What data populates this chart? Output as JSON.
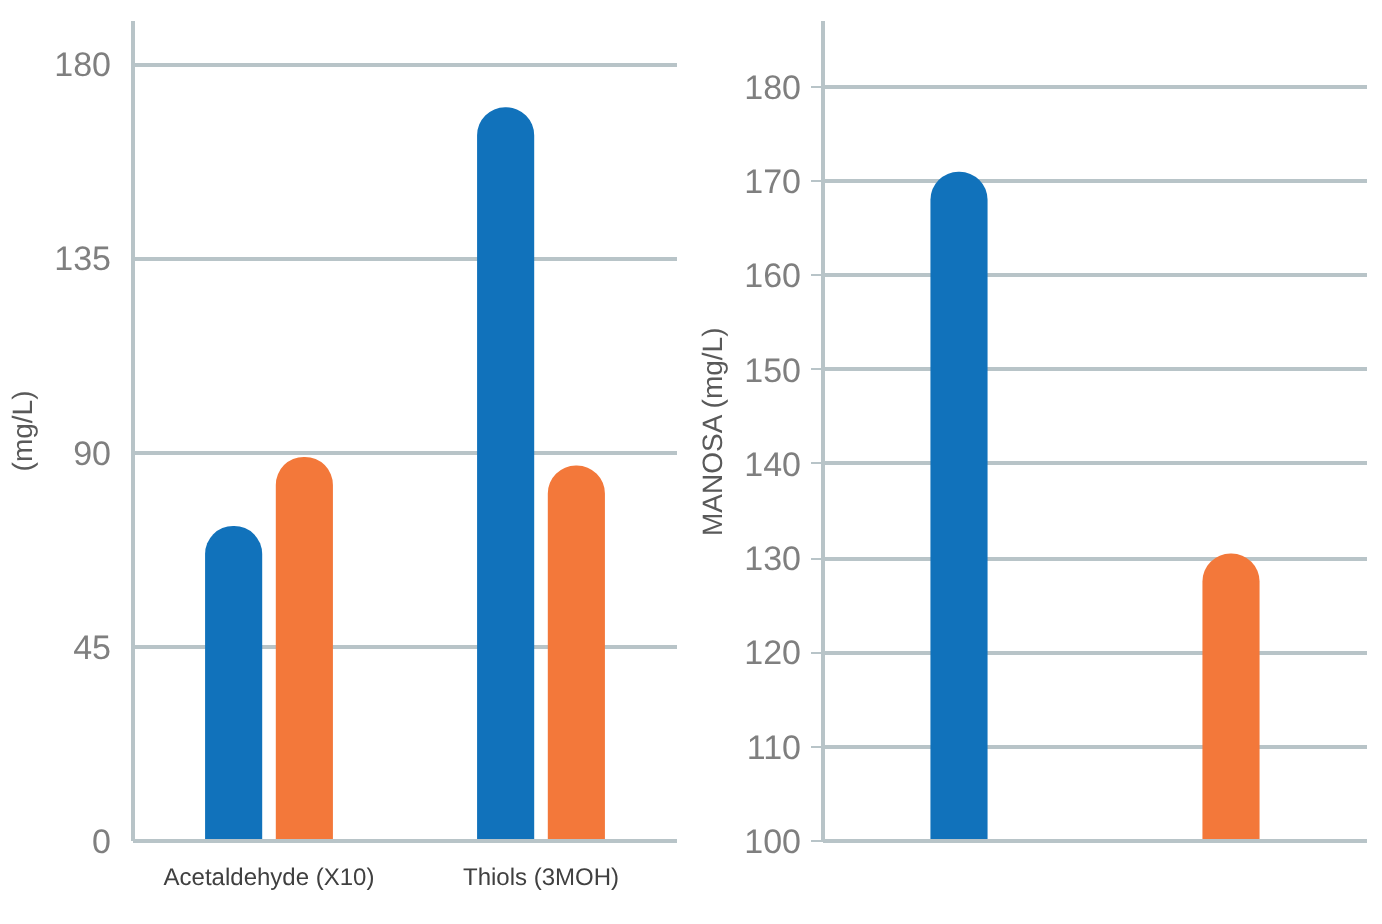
{
  "chart_data": [
    {
      "type": "bar",
      "ylabel": "(mg/L)",
      "categories": [
        "Acetaldehyde (X10)",
        "Thiols (3MOH)"
      ],
      "series": [
        {
          "color": "#1172bb",
          "values": [
            73,
            170
          ]
        },
        {
          "color": "#f3783a",
          "values": [
            89,
            87
          ]
        }
      ],
      "ylim": [
        0,
        190
      ],
      "yticks": [
        0,
        45,
        90,
        135,
        180
      ],
      "grid": "y"
    },
    {
      "type": "bar",
      "ylabel": "MANOSA (mg/L)",
      "categories": [
        null,
        null
      ],
      "values": [
        171,
        130.5
      ],
      "colors": [
        "#1172bb",
        "#f3783a"
      ],
      "ylim": [
        100,
        187
      ],
      "yticks": [
        100,
        110,
        120,
        130,
        140,
        150,
        160,
        170,
        180
      ],
      "grid": "y"
    }
  ]
}
